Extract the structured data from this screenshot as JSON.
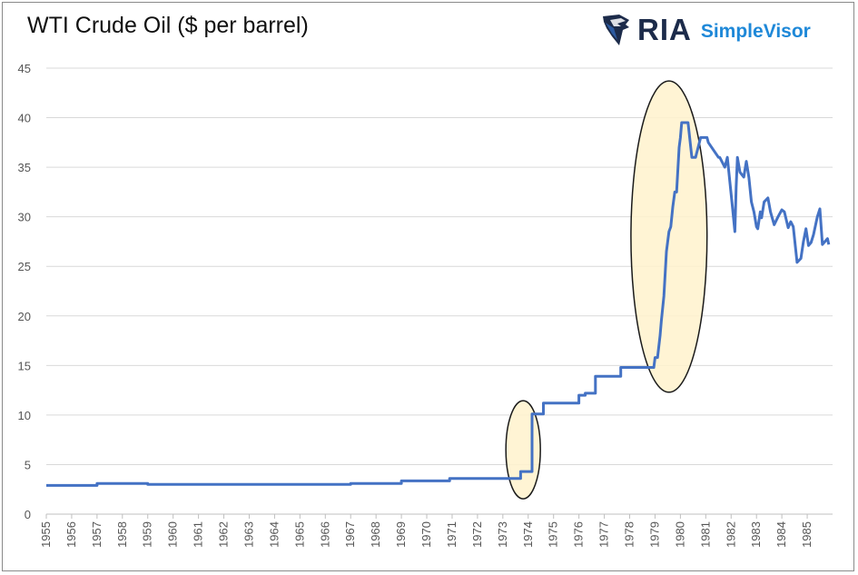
{
  "chart_data": {
    "type": "line",
    "title": "WTI Crude Oil ($ per barrel)",
    "xlabel": "",
    "ylabel": "",
    "ylim": [
      0,
      45
    ],
    "y_ticks": [
      "0",
      "5",
      "10",
      "15",
      "20",
      "25",
      "30",
      "35",
      "40",
      "45"
    ],
    "x_ticks": [
      "1955",
      "1956",
      "1957",
      "1958",
      "1959",
      "1960",
      "1961",
      "1962",
      "1963",
      "1964",
      "1965",
      "1966",
      "1967",
      "1968",
      "1969",
      "1970",
      "1971",
      "1972",
      "1973",
      "1974",
      "1975",
      "1976",
      "1977",
      "1978",
      "1979",
      "1980",
      "1981",
      "1982",
      "1983",
      "1984",
      "1985"
    ],
    "grid": true,
    "series": [
      {
        "color": "#4472c4",
        "x": [
          1955.0,
          1957.0,
          1957.0,
          1959.0,
          1959.0,
          1967.0,
          1967.0,
          1969.0,
          1969.0,
          1970.9,
          1970.9,
          1973.7,
          1973.7,
          1974.15,
          1974.15,
          1974.6,
          1974.6,
          1976.0,
          1976.0,
          1976.25,
          1976.25,
          1976.65,
          1976.65,
          1977.65,
          1977.65,
          1978.95,
          1979.0,
          1979.1,
          1979.2,
          1979.25,
          1979.35,
          1979.45,
          1979.55,
          1979.62,
          1979.7,
          1979.78,
          1979.85,
          1979.95,
          1980.0,
          1980.05,
          1980.15,
          1980.3,
          1980.45,
          1980.55,
          1980.6,
          1980.8,
          1980.95,
          1981.05,
          1981.1,
          1981.5,
          1981.55,
          1981.75,
          1981.85,
          1981.95,
          1982.05,
          1982.15,
          1982.2,
          1982.25,
          1982.35,
          1982.5,
          1982.6,
          1982.7,
          1982.8,
          1982.9,
          1983.0,
          1983.05,
          1983.15,
          1983.2,
          1983.3,
          1983.45,
          1983.55,
          1983.7,
          1983.85,
          1984.0,
          1984.1,
          1984.25,
          1984.35,
          1984.45,
          1984.6,
          1984.75,
          1984.85,
          1984.95,
          1985.05,
          1985.15,
          1985.25,
          1985.4,
          1985.5,
          1985.6,
          1985.7,
          1985.8,
          1985.85
        ],
        "values": [
          2.9,
          2.9,
          3.1,
          3.1,
          3.0,
          3.0,
          3.1,
          3.1,
          3.35,
          3.35,
          3.6,
          3.6,
          4.3,
          4.3,
          10.1,
          10.1,
          11.2,
          11.2,
          12.0,
          12.0,
          12.2,
          12.2,
          13.9,
          13.9,
          14.8,
          14.8,
          15.8,
          15.8,
          18.0,
          19.5,
          22.0,
          26.5,
          28.5,
          29.0,
          31.0,
          32.5,
          32.5,
          37.0,
          38.0,
          39.5,
          39.5,
          39.5,
          36.0,
          36.0,
          36.0,
          38.0,
          38.0,
          38.0,
          37.5,
          36.0,
          36.0,
          35.0,
          36.0,
          33.5,
          31.0,
          28.5,
          33.0,
          36.0,
          34.5,
          34.0,
          35.6,
          34.0,
          31.5,
          30.5,
          29.0,
          28.8,
          30.5,
          29.9,
          31.5,
          31.9,
          30.5,
          29.2,
          30.0,
          30.7,
          30.5,
          28.9,
          29.5,
          29.0,
          25.4,
          25.8,
          27.5,
          28.8,
          27.1,
          27.4,
          28.2,
          30.0,
          30.8,
          27.2,
          27.5,
          27.8,
          27.2
        ]
      }
    ],
    "highlights": [
      {
        "cx": 1973.8,
        "cy": 6.5,
        "rx": 0.68,
        "ry": 4.95
      },
      {
        "cx": 1979.55,
        "cy": 28.0,
        "rx": 1.5,
        "ry": 15.7
      }
    ]
  },
  "logo": {
    "ria_text": "RIA",
    "simplevisor_text": "SimpleVisor",
    "primary_color": "#1c2b4a",
    "accent_color": "#1e88d8",
    "icon": "eagle-head-icon"
  }
}
